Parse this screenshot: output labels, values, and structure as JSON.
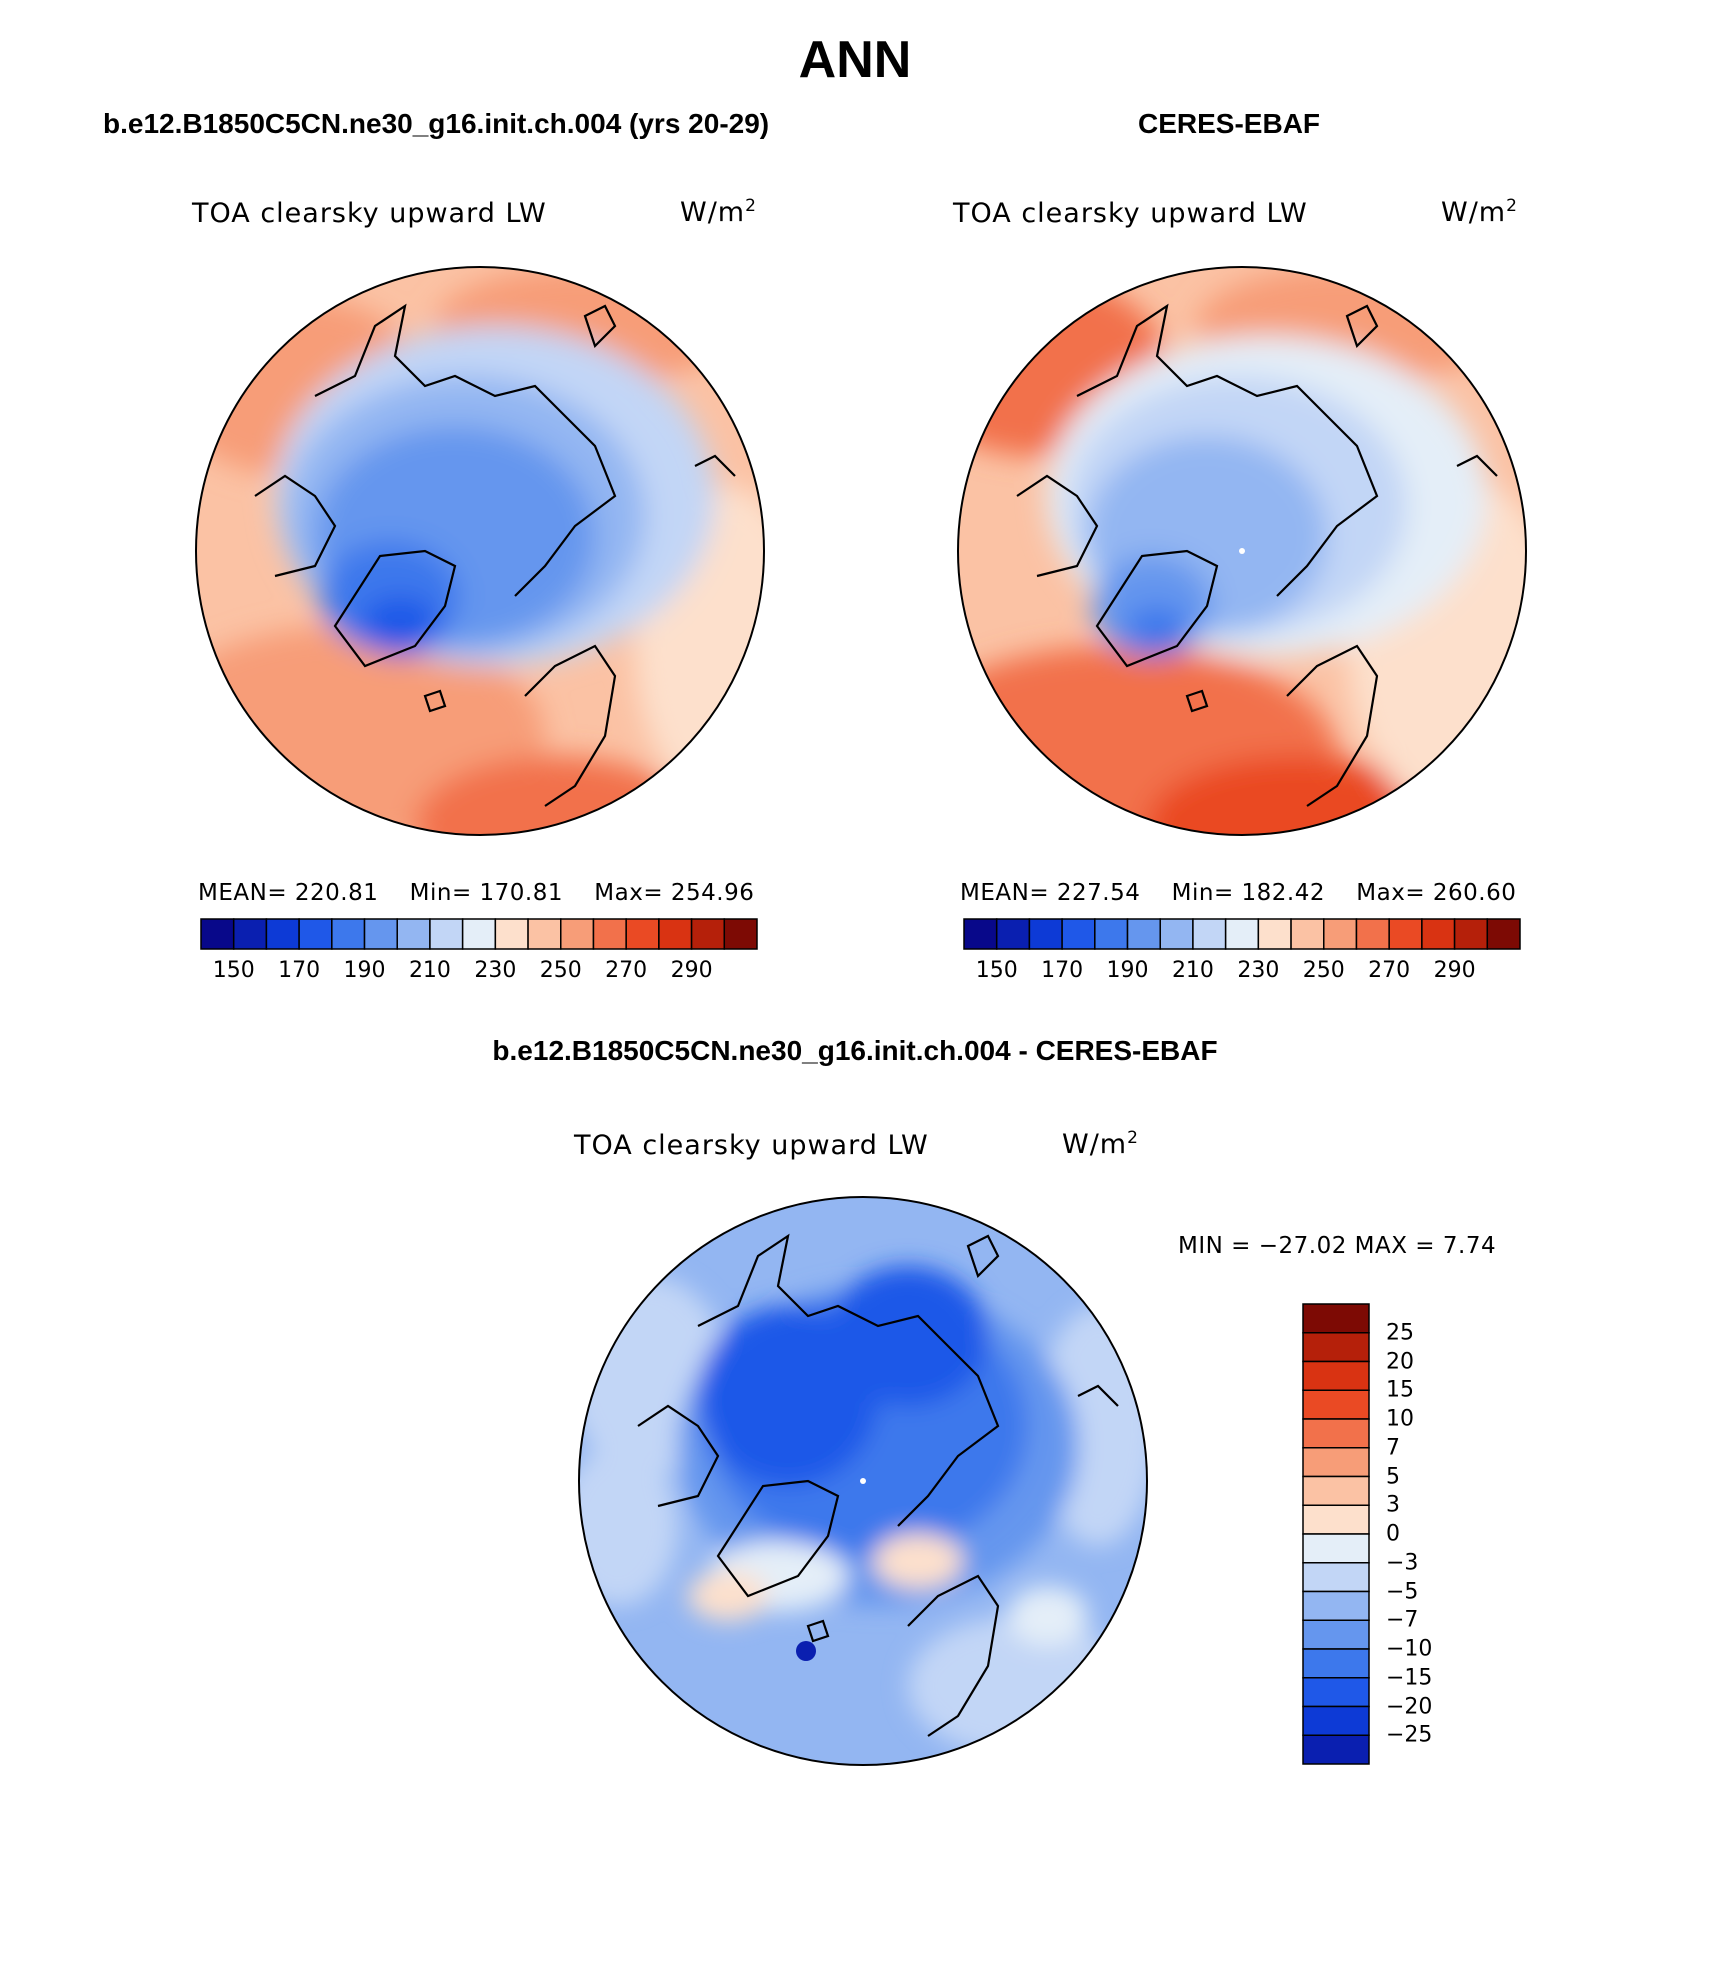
{
  "page_title": "ANN",
  "panels": [
    {
      "heading": "b.e12.B1850C5CN.ne30_g16.init.ch.004 (yrs 20-29)",
      "field": "TOA clearsky upward LW",
      "units": "W/m",
      "units_exp": "2",
      "stats": {
        "mean_label": "MEAN= 220.81",
        "min_label": "Min= 170.81",
        "max_label": "Max= 254.96"
      },
      "mean": 220.81,
      "min": 170.81,
      "max": 254.96
    },
    {
      "heading": "CERES-EBAF",
      "field": "TOA clearsky upward LW",
      "units": "W/m",
      "units_exp": "2",
      "stats": {
        "mean_label": "MEAN= 227.54",
        "min_label": "Min= 182.42",
        "max_label": "Max= 260.60"
      },
      "mean": 227.54,
      "min": 182.42,
      "max": 260.6
    }
  ],
  "abs_colorbar": {
    "tick_labels": [
      "150",
      "170",
      "190",
      "210",
      "230",
      "250",
      "270",
      "290"
    ],
    "colors": [
      "#08088a",
      "#0a1fb0",
      "#0d3ad6",
      "#1f58e8",
      "#3d78ec",
      "#6596ee",
      "#93b6f2",
      "#c2d6f6",
      "#e4eef8",
      "#fde0cc",
      "#fbc2a4",
      "#f79d78",
      "#f2714b",
      "#ea4a24",
      "#d93312",
      "#b5200a",
      "#7d0a04"
    ]
  },
  "difference": {
    "heading": "b.e12.B1850C5CN.ne30_g16.init.ch.004 - CERES-EBAF",
    "field": "TOA clearsky upward LW",
    "units": "W/m",
    "units_exp": "2",
    "minmax_label": "MIN = −27.02  MAX =    7.74",
    "min": -27.02,
    "max": 7.74,
    "colorbar": {
      "tick_labels": [
        "25",
        "20",
        "15",
        "10",
        "7",
        "5",
        "3",
        "0",
        "−3",
        "−5",
        "−7",
        "−10",
        "−15",
        "−20",
        "−25"
      ],
      "colors_top_to_bottom": [
        "#7d0a04",
        "#b5200a",
        "#d93312",
        "#ea4a24",
        "#f2714b",
        "#f79d78",
        "#fbc2a4",
        "#fde0cc",
        "#e4eef8",
        "#c2d6f6",
        "#93b6f2",
        "#6596ee",
        "#3d78ec",
        "#1f58e8",
        "#0d3ad6",
        "#0a1fb0"
      ]
    }
  }
}
